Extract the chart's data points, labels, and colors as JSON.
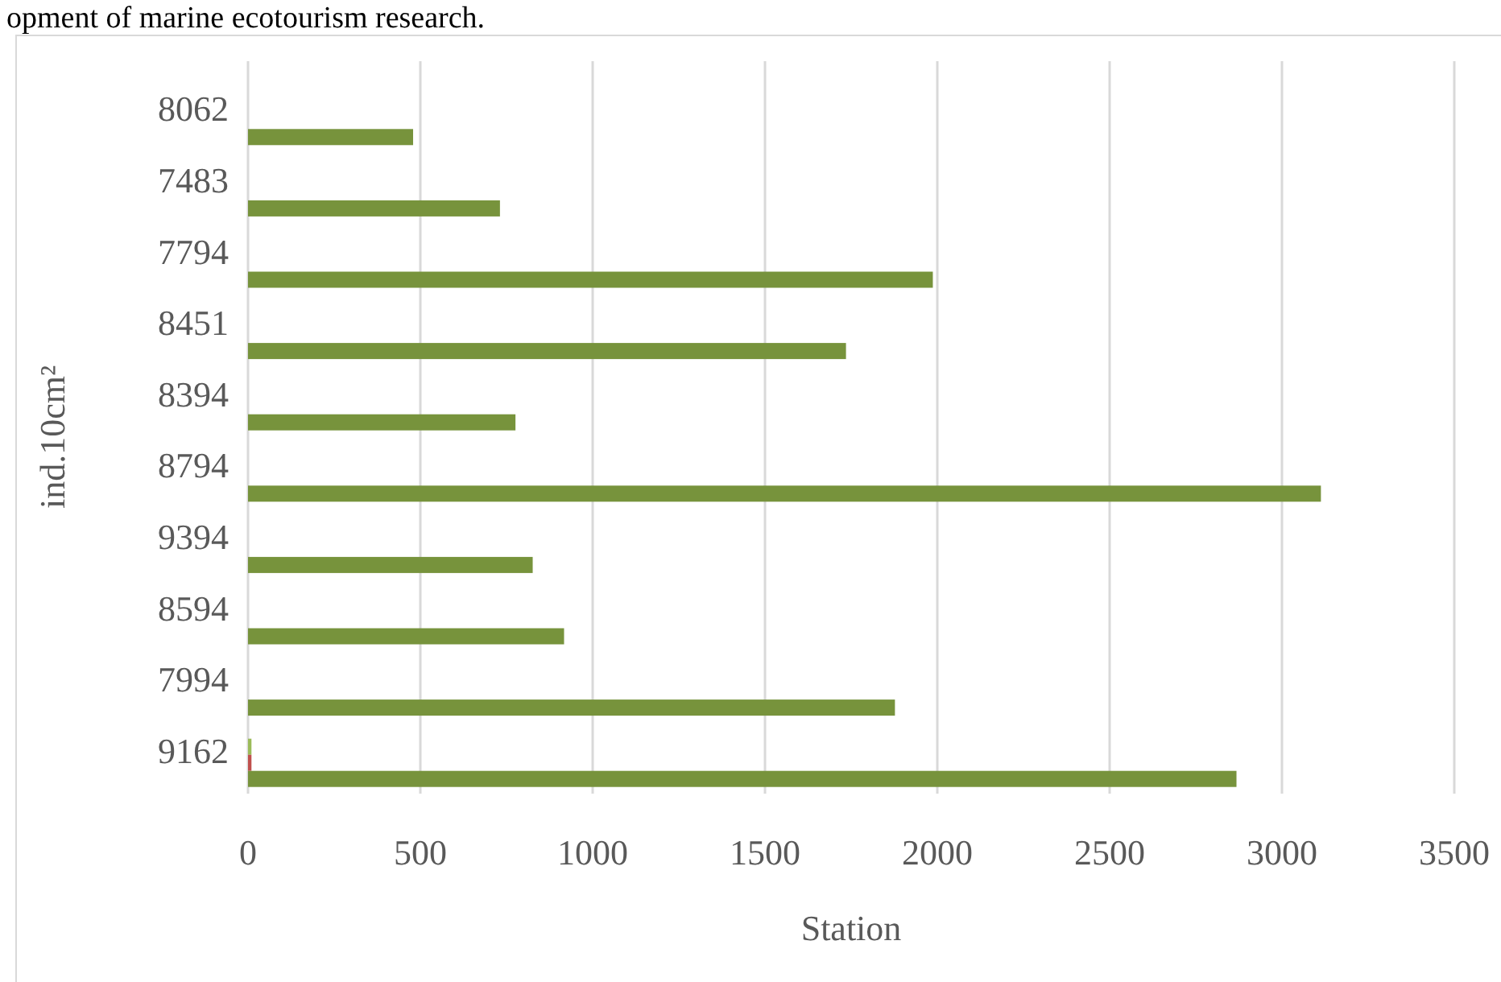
{
  "chart_data": {
    "type": "bar",
    "orientation": "horizontal",
    "xlabel": "Station",
    "ylabel": "ind.10cm²",
    "annotations": [
      "opment of marine ecotourism research."
    ],
    "categories": [
      "8062",
      "7483",
      "7794",
      "8451",
      "8394",
      "8794",
      "9394",
      "8594",
      "7994",
      "9162"
    ],
    "series": [
      {
        "color": "#9bbb59",
        "values": [
          null,
          null,
          null,
          null,
          null,
          null,
          null,
          null,
          null,
          10
        ]
      },
      {
        "color": "#c0504d",
        "values": [
          null,
          null,
          null,
          null,
          null,
          null,
          null,
          null,
          null,
          10
        ]
      },
      {
        "color": "#77933c",
        "values": [
          479,
          731,
          1987,
          1735,
          776,
          3113,
          826,
          917,
          1877,
          2868
        ]
      }
    ],
    "xlim": [
      0,
      3500
    ],
    "xticks": [
      0,
      500,
      1000,
      1500,
      2000,
      2500,
      3000,
      3500
    ],
    "grid": "x"
  }
}
